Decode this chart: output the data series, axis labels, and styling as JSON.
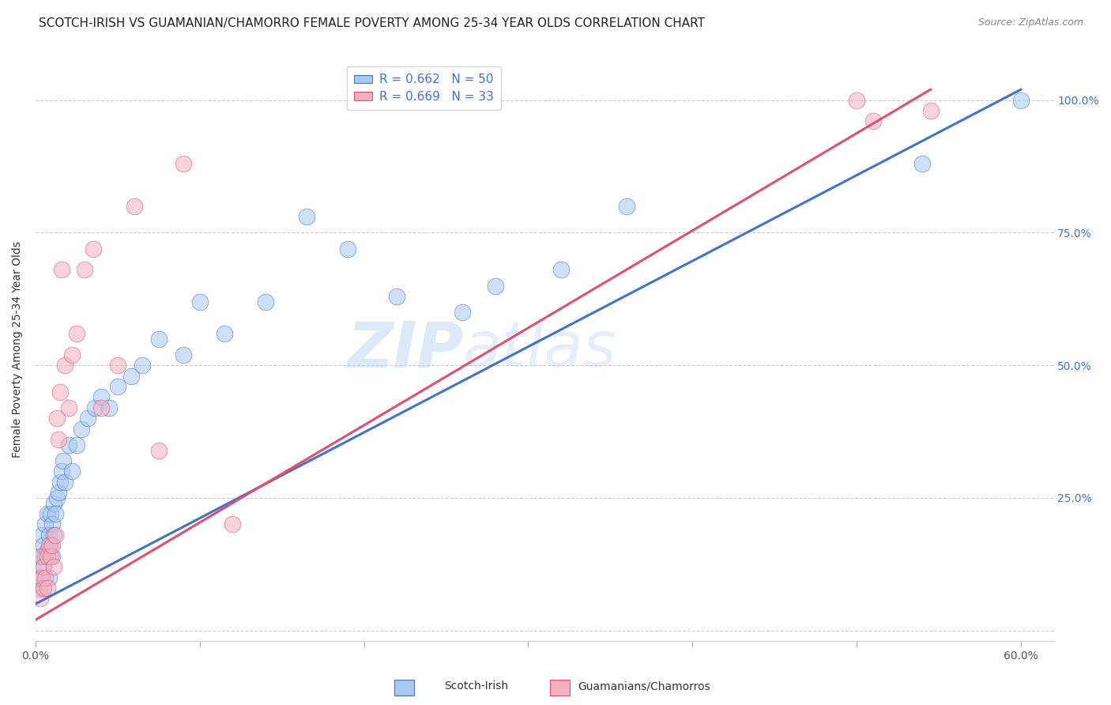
{
  "title": "SCOTCH-IRISH VS GUAMANIAN/CHAMORRO FEMALE POVERTY AMONG 25-34 YEAR OLDS CORRELATION CHART",
  "source": "Source: ZipAtlas.com",
  "ylabel": "Female Poverty Among 25-34 Year Olds",
  "xlim": [
    0.0,
    0.62
  ],
  "ylim": [
    -0.02,
    1.08
  ],
  "xticks": [
    0.0,
    0.1,
    0.2,
    0.3,
    0.4,
    0.5,
    0.6
  ],
  "xticklabels": [
    "0.0%",
    "",
    "",
    "",
    "",
    "",
    "60.0%"
  ],
  "yticks_right": [
    0.0,
    0.25,
    0.5,
    0.75,
    1.0
  ],
  "yticklabels_right": [
    "",
    "25.0%",
    "50.0%",
    "75.0%",
    "100.0%"
  ],
  "yticks_left": [
    0.0,
    0.25,
    0.5,
    0.75,
    1.0
  ],
  "blue_color": "#A8C8F0",
  "pink_color": "#F4B0C0",
  "blue_line_color": "#4472C4",
  "pink_line_color": "#E05070",
  "legend_text_color": "#4472C4",
  "watermark": "ZIPatlas",
  "legend_R_blue": "R = 0.662",
  "legend_N_blue": "N = 50",
  "legend_R_pink": "R = 0.669",
  "legend_N_pink": "N = 33",
  "blue_scatter_x": [
    0.002,
    0.003,
    0.004,
    0.004,
    0.005,
    0.005,
    0.006,
    0.006,
    0.007,
    0.007,
    0.008,
    0.008,
    0.009,
    0.009,
    0.01,
    0.01,
    0.011,
    0.011,
    0.012,
    0.013,
    0.014,
    0.015,
    0.016,
    0.017,
    0.018,
    0.02,
    0.022,
    0.025,
    0.028,
    0.032,
    0.036,
    0.04,
    0.045,
    0.05,
    0.058,
    0.065,
    0.075,
    0.09,
    0.1,
    0.115,
    0.14,
    0.165,
    0.19,
    0.22,
    0.26,
    0.28,
    0.32,
    0.36,
    0.54,
    0.6
  ],
  "blue_scatter_y": [
    0.14,
    0.1,
    0.18,
    0.12,
    0.16,
    0.08,
    0.2,
    0.14,
    0.22,
    0.15,
    0.18,
    0.1,
    0.22,
    0.16,
    0.2,
    0.14,
    0.24,
    0.18,
    0.22,
    0.25,
    0.26,
    0.28,
    0.3,
    0.32,
    0.28,
    0.35,
    0.3,
    0.35,
    0.38,
    0.4,
    0.42,
    0.44,
    0.42,
    0.46,
    0.48,
    0.5,
    0.55,
    0.52,
    0.62,
    0.56,
    0.62,
    0.78,
    0.72,
    0.63,
    0.6,
    0.65,
    0.68,
    0.8,
    0.88,
    1.0
  ],
  "pink_scatter_x": [
    0.002,
    0.003,
    0.004,
    0.004,
    0.005,
    0.005,
    0.006,
    0.007,
    0.007,
    0.008,
    0.009,
    0.01,
    0.011,
    0.012,
    0.013,
    0.014,
    0.015,
    0.016,
    0.018,
    0.02,
    0.022,
    0.025,
    0.03,
    0.035,
    0.04,
    0.05,
    0.06,
    0.075,
    0.09,
    0.12,
    0.5,
    0.51,
    0.545
  ],
  "pink_scatter_y": [
    0.08,
    0.06,
    0.1,
    0.14,
    0.12,
    0.08,
    0.1,
    0.14,
    0.08,
    0.16,
    0.14,
    0.16,
    0.12,
    0.18,
    0.4,
    0.36,
    0.45,
    0.68,
    0.5,
    0.42,
    0.52,
    0.56,
    0.68,
    0.72,
    0.42,
    0.5,
    0.8,
    0.34,
    0.88,
    0.2,
    1.0,
    0.96,
    0.98
  ],
  "blue_line_x": [
    0.0,
    0.6
  ],
  "blue_line_y": [
    0.05,
    1.02
  ],
  "pink_line_x": [
    0.0,
    0.545
  ],
  "pink_line_y": [
    0.02,
    1.02
  ],
  "title_fontsize": 11,
  "axis_label_fontsize": 10,
  "tick_fontsize": 10,
  "tick_color_right": "#4472C4",
  "grid_color": "#CCCCCC"
}
